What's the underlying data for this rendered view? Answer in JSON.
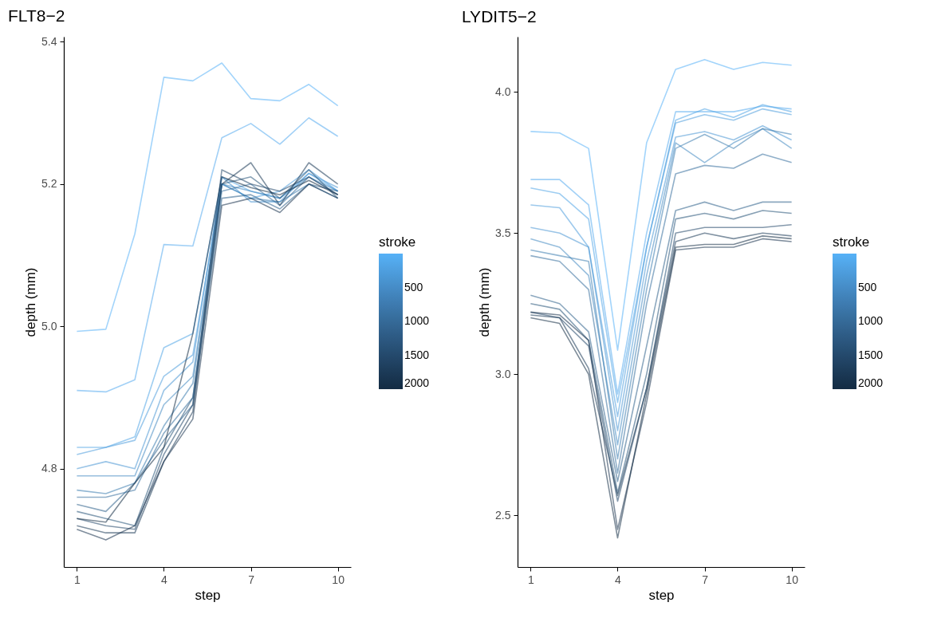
{
  "chart_data": [
    {
      "type": "line",
      "title": "FLT8−2",
      "xlabel": "step",
      "ylabel": "depth (mm)",
      "clabel": "stroke",
      "clim": [
        0,
        2000
      ],
      "cticks": [
        500,
        1000,
        1500,
        2000
      ],
      "x": [
        1,
        2,
        3,
        4,
        5,
        6,
        7,
        8,
        9,
        10
      ],
      "xlim": [
        0.55,
        10.45
      ],
      "xticks": [
        1,
        4,
        7,
        10
      ],
      "ylim": [
        4.662,
        5.407
      ],
      "yticks": [
        4.8,
        {
          "value": 5,
          "label": "5.0"
        },
        5.2,
        5.4
      ],
      "grid": false,
      "line_style": "solid",
      "series": [
        {
          "color": "#56b1f7",
          "values": [
            4.993,
            4.996,
            5.13,
            5.35,
            5.345,
            5.37,
            5.32,
            5.317,
            5.34,
            5.31
          ]
        },
        {
          "color": "#53aaee",
          "values": [
            4.91,
            4.908,
            4.925,
            5.115,
            5.113,
            5.265,
            5.285,
            5.256,
            5.293,
            5.267
          ]
        },
        {
          "color": "#4fa4e5",
          "values": [
            4.83,
            4.83,
            4.845,
            4.97,
            4.99,
            5.21,
            5.19,
            5.18,
            5.215,
            5.19
          ]
        },
        {
          "color": "#4c9ddc",
          "values": [
            4.82,
            4.83,
            4.84,
            4.93,
            4.96,
            5.2,
            5.18,
            5.19,
            5.22,
            5.19
          ]
        },
        {
          "color": "#4996d3",
          "values": [
            4.8,
            4.81,
            4.8,
            4.91,
            4.95,
            5.21,
            5.175,
            5.175,
            5.215,
            5.195
          ]
        },
        {
          "color": "#4289c1",
          "values": [
            4.79,
            4.79,
            4.79,
            4.89,
            4.93,
            5.2,
            5.19,
            5.18,
            5.21,
            5.19
          ]
        },
        {
          "color": "#3b7baf",
          "values": [
            4.77,
            4.765,
            4.78,
            4.86,
            4.92,
            5.2,
            5.18,
            5.175,
            5.2,
            5.18
          ]
        },
        {
          "color": "#356e9d",
          "values": [
            4.76,
            4.76,
            4.77,
            4.85,
            4.9,
            5.19,
            5.2,
            5.17,
            5.21,
            5.185
          ]
        },
        {
          "color": "#2e618b",
          "values": [
            4.75,
            4.74,
            4.78,
            4.84,
            4.89,
            5.18,
            5.185,
            5.165,
            5.2,
            5.19
          ]
        },
        {
          "color": "#275379",
          "values": [
            4.74,
            4.73,
            4.72,
            4.83,
            4.9,
            5.2,
            5.21,
            5.18,
            5.22,
            5.18
          ]
        },
        {
          "color": "#204667",
          "values": [
            4.73,
            4.72,
            4.715,
            4.82,
            4.89,
            5.22,
            5.2,
            5.19,
            5.21,
            5.185
          ]
        },
        {
          "color": "#1a3855",
          "values": [
            4.72,
            4.71,
            4.71,
            4.81,
            4.88,
            5.2,
            5.23,
            5.17,
            5.23,
            5.2
          ]
        },
        {
          "color": "#17324c",
          "values": [
            4.715,
            4.7,
            4.72,
            4.81,
            4.87,
            5.17,
            5.18,
            5.16,
            5.2,
            5.18
          ]
        },
        {
          "color": "#132b43",
          "values": [
            4.73,
            4.725,
            4.78,
            4.83,
            4.99,
            5.21,
            5.195,
            5.185,
            5.205,
            5.185
          ]
        }
      ]
    },
    {
      "type": "line",
      "title": "LYDIT5−2",
      "xlabel": "step",
      "ylabel": "depth (mm)",
      "clabel": "stroke",
      "clim": [
        0,
        2000
      ],
      "cticks": [
        500,
        1000,
        1500,
        2000
      ],
      "x": [
        1,
        2,
        3,
        4,
        5,
        6,
        7,
        8,
        9,
        10
      ],
      "xlim": [
        0.55,
        10.45
      ],
      "xticks": [
        1,
        4,
        7,
        10
      ],
      "ylim": [
        2.317,
        4.196
      ],
      "yticks": [
        2.5,
        {
          "value": 3,
          "label": "3.0"
        },
        3.5,
        {
          "value": 4,
          "label": "4.0"
        }
      ],
      "grid": false,
      "line_style": "solid",
      "series": [
        {
          "color": "#56b1f7",
          "values": [
            3.86,
            3.855,
            3.8,
            3.085,
            3.82,
            4.08,
            4.115,
            4.08,
            4.105,
            4.095
          ]
        },
        {
          "color": "#53aaee",
          "values": [
            3.69,
            3.69,
            3.6,
            2.93,
            3.5,
            3.93,
            3.93,
            3.93,
            3.95,
            3.94
          ]
        },
        {
          "color": "#4fa4e5",
          "values": [
            3.66,
            3.64,
            3.55,
            2.9,
            3.45,
            3.9,
            3.94,
            3.91,
            3.955,
            3.93
          ]
        },
        {
          "color": "#4c9ddc",
          "values": [
            3.6,
            3.59,
            3.45,
            2.85,
            3.45,
            3.89,
            3.92,
            3.9,
            3.94,
            3.92
          ]
        },
        {
          "color": "#4996d3",
          "values": [
            3.52,
            3.5,
            3.45,
            2.8,
            3.4,
            3.84,
            3.86,
            3.83,
            3.88,
            3.83
          ]
        },
        {
          "color": "#4289c1",
          "values": [
            3.48,
            3.45,
            3.35,
            2.75,
            3.35,
            3.82,
            3.75,
            3.82,
            3.87,
            3.8
          ]
        },
        {
          "color": "#3b7baf",
          "values": [
            3.44,
            3.42,
            3.4,
            2.7,
            3.3,
            3.8,
            3.85,
            3.8,
            3.87,
            3.85
          ]
        },
        {
          "color": "#356e9d",
          "values": [
            3.42,
            3.4,
            3.3,
            2.65,
            3.25,
            3.71,
            3.74,
            3.73,
            3.78,
            3.75
          ]
        },
        {
          "color": "#2e618b",
          "values": [
            3.28,
            3.25,
            3.15,
            2.62,
            3.1,
            3.58,
            3.61,
            3.58,
            3.61,
            3.61
          ]
        },
        {
          "color": "#275379",
          "values": [
            3.25,
            3.23,
            3.12,
            2.58,
            3.0,
            3.55,
            3.57,
            3.55,
            3.58,
            3.57
          ]
        },
        {
          "color": "#204667",
          "values": [
            3.22,
            3.2,
            3.1,
            2.55,
            2.95,
            3.5,
            3.52,
            3.52,
            3.52,
            3.53
          ]
        },
        {
          "color": "#1a3855",
          "values": [
            3.21,
            3.2,
            3.02,
            2.57,
            2.95,
            3.47,
            3.5,
            3.48,
            3.5,
            3.49
          ]
        },
        {
          "color": "#17324c",
          "values": [
            3.22,
            3.21,
            3.12,
            2.45,
            2.9,
            3.44,
            3.45,
            3.45,
            3.48,
            3.47
          ]
        },
        {
          "color": "#132b43",
          "values": [
            3.2,
            3.18,
            3.0,
            2.42,
            2.93,
            3.45,
            3.46,
            3.46,
            3.49,
            3.48
          ]
        }
      ]
    }
  ]
}
